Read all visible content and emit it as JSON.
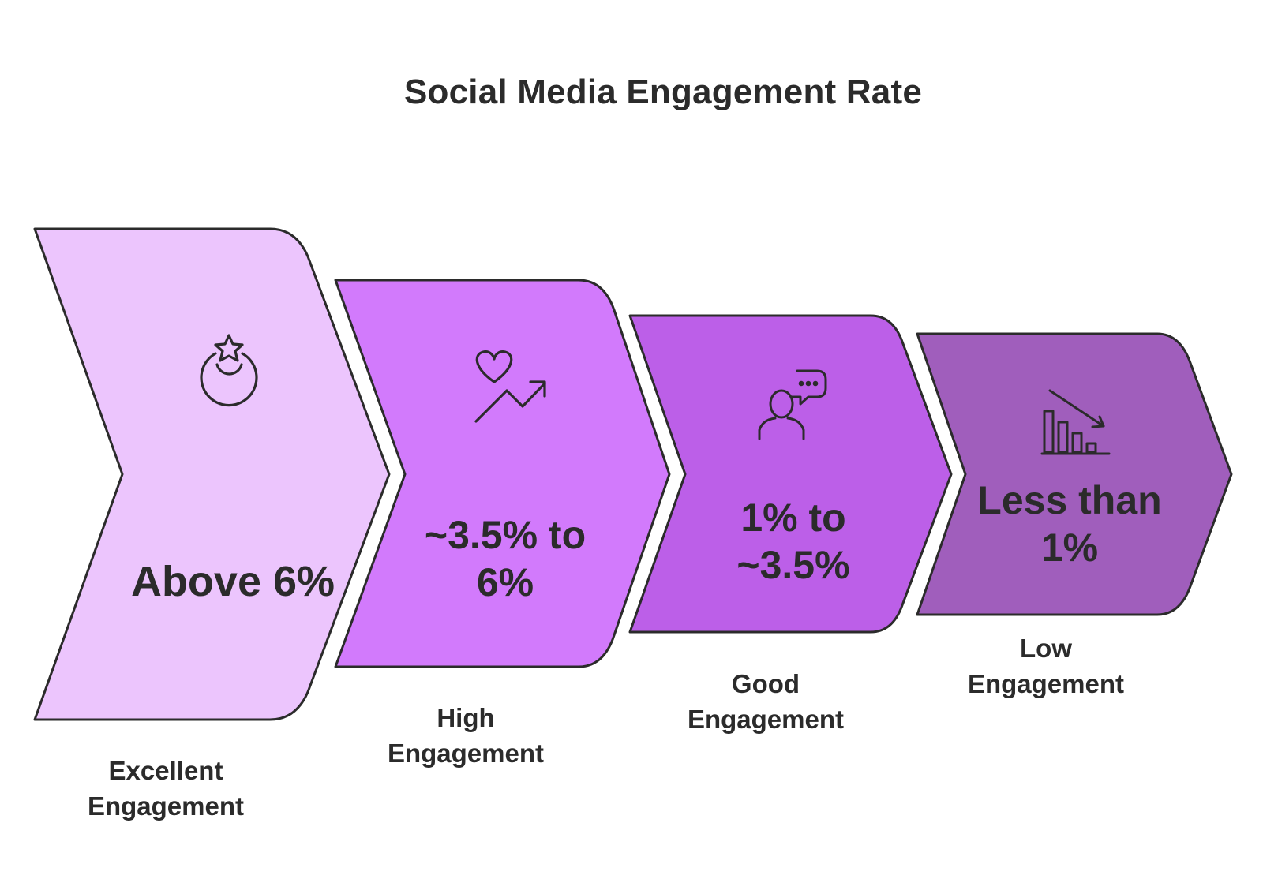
{
  "title": "Social Media Engagement Rate",
  "colors": {
    "outline": "#2b2b2b",
    "stage_fills": [
      "#ecc5fd",
      "#d27afc",
      "#bc5fe8",
      "#a05ebc"
    ]
  },
  "stages": [
    {
      "value": "Above 6%",
      "label": "Excellent\nEngagement",
      "icon": "star-badge-icon"
    },
    {
      "value": "~3.5% to 6%",
      "label": "High\nEngagement",
      "icon": "heart-trend-up-icon"
    },
    {
      "value": "1% to ~3.5%",
      "label": "Good\nEngagement",
      "icon": "person-speech-bubble-icon"
    },
    {
      "value": "Less than 1%",
      "label": "Low\nEngagement",
      "icon": "bar-chart-decline-icon"
    }
  ]
}
